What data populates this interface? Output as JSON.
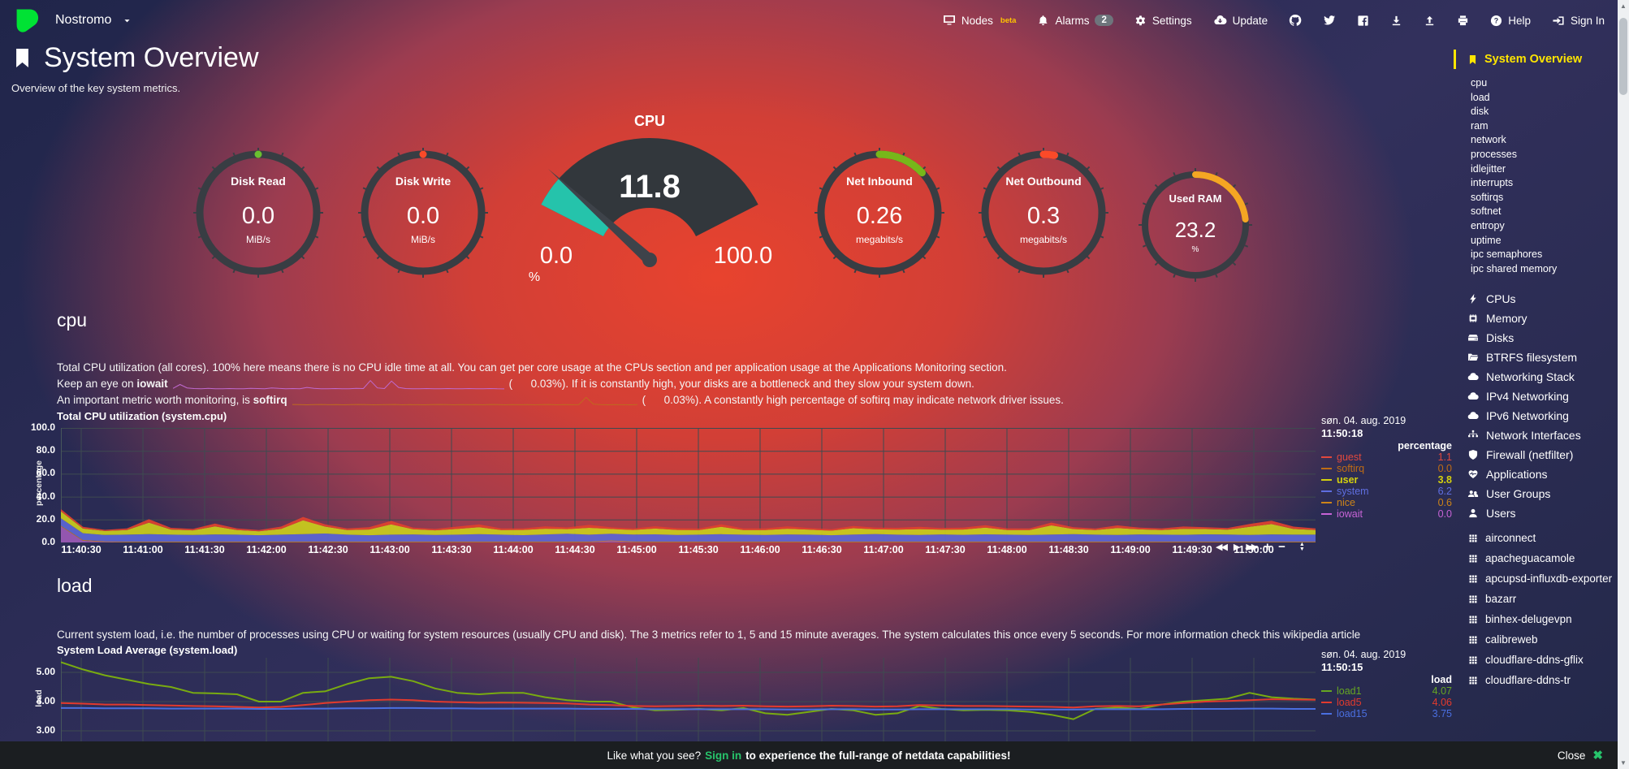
{
  "navbar": {
    "hostname": "Nostromo",
    "nodes": {
      "label": "Nodes",
      "beta": "beta"
    },
    "alarms": {
      "label": "Alarms",
      "badge": "2"
    },
    "settings": {
      "label": "Settings"
    },
    "update": {
      "label": "Update"
    },
    "help": "Help",
    "signin": "Sign In"
  },
  "header": {
    "title": "System Overview",
    "subtitle": "Overview of the key system metrics."
  },
  "gauges": [
    {
      "kind": "ring",
      "label": "Disk Read",
      "value": "0.0",
      "unit": "MiB/s",
      "fraction": 0,
      "color": "#6abf30"
    },
    {
      "kind": "ring",
      "label": "Disk Write",
      "value": "0.0",
      "unit": "MiB/s",
      "fraction": 0,
      "color": "#fb4a28"
    },
    {
      "kind": "gauge",
      "label": "CPU",
      "value": "11.8",
      "min": "0.0",
      "max": "100.0",
      "unit": "%",
      "fraction": 0.118,
      "color": "#25c3ab"
    },
    {
      "kind": "ring",
      "label": "Net Inbound",
      "value": "0.26",
      "unit": "megabits/s",
      "fraction": 0.13,
      "color": "#77b71a"
    },
    {
      "kind": "ring",
      "label": "Net Outbound",
      "value": "0.3",
      "unit": "megabits/s",
      "fraction": 0.03,
      "color": "#fb4a28"
    },
    {
      "kind": "ring",
      "label": "Used RAM",
      "value": "23.2",
      "unit": "%",
      "fraction": 0.232,
      "color": "#f5a623",
      "small": true
    }
  ],
  "cpu_section": {
    "heading": "cpu",
    "line1": "Total CPU utilization (all cores). 100% here means there is no CPU idle time at all. You can get per core usage at the CPUs section and per application usage at the Applications Monitoring section.",
    "line2_pre": "Keep an eye on ",
    "line2_bold": "iowait",
    "line2_post": "(      0.03%). If it is constantly high, your disks are a bottleneck and they slow your system down.",
    "line3_pre": "An important metric worth monitoring, is ",
    "line3_bold": "softirq",
    "line3_post": "(      0.03%). A constantly high percentage of softirq may indicate network driver issues.",
    "iowait_spark_color": "#c06ad0",
    "softirq_spark_color": "#bf6a1f",
    "iowait_spark": [
      0.1,
      0.5,
      0.15,
      0.08,
      0.06,
      0.1,
      0.07,
      0.06,
      0.08,
      0.06,
      0.07,
      0.1,
      0.08,
      0.06,
      0.15,
      0.1,
      0.07,
      0.08,
      0.06,
      0.2,
      0.1,
      0.07,
      0.06,
      0.08,
      0.07,
      0.06,
      0.1,
      0.08,
      0.9,
      0.15,
      0.08,
      0.85,
      0.2,
      0.08,
      0.07,
      0.06,
      0.08,
      0.07,
      0.06,
      0.08,
      0.06,
      0.07,
      0.08,
      0.06,
      0.07,
      0.08,
      0.06,
      0.05
    ],
    "softirq_spark": [
      0.12,
      0.1,
      0.08,
      0.1,
      0.12,
      0.09,
      0.1,
      0.08,
      0.1,
      0.12,
      0.1,
      0.08,
      0.09,
      0.1,
      0.12,
      0.08,
      0.1,
      0.09,
      0.08,
      0.1,
      0.12,
      0.1,
      0.08,
      0.1,
      0.09,
      0.1,
      0.08,
      0.12,
      0.1,
      0.08,
      0.1,
      0.09,
      0.1,
      0.08,
      0.1,
      0.12,
      0.08,
      0.1,
      0.09,
      0.1,
      0.85,
      0.15,
      0.1,
      0.08,
      0.1,
      0.09,
      0.08,
      0.1
    ]
  },
  "load_section": {
    "heading": "load",
    "description": "Current system load, i.e. the number of processes using CPU or waiting for system resources (usually CPU and disk). The 3 metrics refer to 1, 5 and 15 minute averages. The system calculates this once every 5 seconds. For more information check this wikipedia article"
  },
  "chart_data": [
    {
      "id": "cpu",
      "type": "area-stacked",
      "title": "Total CPU utilization (system.cpu)",
      "ylabel": "percentage",
      "ylim": [
        0,
        100
      ],
      "yticks": [
        "100.0",
        "80.0",
        "60.0",
        "40.0",
        "20.0",
        "0.0"
      ],
      "x_labels": [
        "11:40:30",
        "11:41:00",
        "11:41:30",
        "11:42:00",
        "11:42:30",
        "11:43:00",
        "11:43:30",
        "11:44:00",
        "11:44:30",
        "11:45:00",
        "11:45:30",
        "11:46:00",
        "11:46:30",
        "11:47:00",
        "11:47:30",
        "11:48:00",
        "11:48:30",
        "11:49:00",
        "11:49:30",
        "11:50:00"
      ],
      "legend": {
        "date": "søn. 04. aug. 2019",
        "time": "11:50:18",
        "header": "percentage",
        "items": [
          {
            "name": "guest",
            "value": "1.1",
            "color": "#e2483d"
          },
          {
            "name": "softirq",
            "value": "0.0",
            "color": "#c06c14"
          },
          {
            "name": "user",
            "value": "3.8",
            "color": "#d4d00e",
            "bold": true
          },
          {
            "name": "system",
            "value": "6.2",
            "color": "#5f6ee0"
          },
          {
            "name": "nice",
            "value": "0.6",
            "color": "#cd8419"
          },
          {
            "name": "iowait",
            "value": "0.0",
            "color": "#c763d6"
          }
        ]
      },
      "toolbar": [
        "rewind",
        "play",
        "fast-forward",
        "zoom-in",
        "zoom-out",
        "resize"
      ],
      "series": [
        {
          "name": "iowait",
          "color": "#9b59b6",
          "values": [
            14,
            1.5,
            0.4,
            0.2,
            0.2,
            0.2,
            0.2,
            0.2,
            0.2,
            0.2,
            0.2,
            0.2,
            0.2,
            0.2,
            0.2,
            0.2,
            0.2,
            0.2,
            0.2,
            0.2,
            0.2,
            0.2,
            0.2,
            0.2,
            0.2,
            1.2,
            0.3,
            0.2,
            0.2,
            0.2,
            0.2,
            0.2,
            0.2,
            0.2,
            0.2,
            0.2,
            0.2,
            0.2,
            0.2,
            0.2,
            0.2,
            0.2,
            0.2,
            0.2,
            0.2,
            0.2,
            0.2,
            0.2,
            0.2,
            0.2,
            0.2,
            0.2,
            0.2,
            0.2,
            0.2,
            0.2,
            0.2,
            0.2
          ]
        },
        {
          "name": "nice",
          "color": "#cd8419",
          "constant": 0.6
        },
        {
          "name": "system",
          "color": "#5b66d4",
          "values": [
            6.5,
            6,
            5.5,
            6,
            6.5,
            6,
            5.8,
            6.2,
            6,
            5.5,
            6,
            6.5,
            7,
            6,
            5.5,
            6,
            6.2,
            5.8,
            6,
            6.5,
            6,
            5.6,
            6.2,
            6.8,
            6,
            5.8,
            6,
            6.3,
            5.7,
            6,
            6.4,
            6,
            5.8,
            6.2,
            6,
            5.5,
            6.1,
            6.6,
            6,
            5.8,
            6.2,
            5.9,
            6.3,
            6,
            5.7,
            6.1,
            6.4,
            6,
            5.8,
            6.2,
            6,
            5.9,
            6.3,
            6.1,
            5.8,
            6.2,
            6,
            6
          ]
        },
        {
          "name": "user",
          "color": "#c9cc1c",
          "values": [
            6,
            4,
            3.5,
            4,
            10,
            4.5,
            4,
            7,
            4,
            3.5,
            5,
            12,
            6,
            4,
            5,
            9,
            4.5,
            4,
            5,
            6,
            4,
            4.5,
            5,
            4,
            6,
            4.2,
            4,
            5,
            4.4,
            4,
            6.5,
            4,
            4.2,
            5,
            4.3,
            4,
            5.5,
            4,
            4.4,
            5,
            4.2,
            4.6,
            5.8,
            4,
            4.3,
            8,
            4.5,
            4,
            6,
            4.4,
            4,
            5.2,
            4.6,
            4.2,
            7,
            9,
            5,
            4
          ]
        },
        {
          "name": "guest",
          "color": "#e0422e",
          "values": [
            2,
            1.5,
            1,
            1.5,
            3,
            1.5,
            1.2,
            2.5,
            1.5,
            1,
            2,
            3,
            2,
            1.5,
            2,
            3,
            1.5,
            1.2,
            2,
            2.5,
            1.5,
            1.3,
            2,
            1.5,
            2.5,
            1.4,
            1.2,
            2,
            1.5,
            1.3,
            2.2,
            1.5,
            1.4,
            2,
            1.5,
            1.2,
            2,
            1.5,
            1.6,
            2,
            1.4,
            1.6,
            2.2,
            1.5,
            1.4,
            2.5,
            1.6,
            1.3,
            2.3,
            1.5,
            1.4,
            2,
            1.6,
            1.5,
            2.5,
            3,
            2,
            1.5
          ]
        }
      ]
    },
    {
      "id": "load",
      "type": "line",
      "title": "System Load Average (system.load)",
      "ylabel": "load",
      "ylim": [
        2.64,
        5.5
      ],
      "yticks": [
        "5.00",
        "4.00",
        "3.00"
      ],
      "legend": {
        "date": "søn. 04. aug. 2019",
        "time": "11:50:15",
        "header": "load",
        "items": [
          {
            "name": "load1",
            "value": "4.07",
            "color": "#66a622"
          },
          {
            "name": "load5",
            "value": "4.06",
            "color": "#e23a2d"
          },
          {
            "name": "load15",
            "value": "3.75",
            "color": "#4a6fe0"
          }
        ]
      },
      "series": [
        {
          "name": "load1",
          "color": "#79ab11",
          "values": [
            5.35,
            5.1,
            4.9,
            4.75,
            4.6,
            4.5,
            4.3,
            4.28,
            4.25,
            4.0,
            4.0,
            4.3,
            4.35,
            4.6,
            4.8,
            4.85,
            4.7,
            4.45,
            4.3,
            4.25,
            4.3,
            4.3,
            4.15,
            4.05,
            4.0,
            4.0,
            3.8,
            3.7,
            3.72,
            3.75,
            3.7,
            3.78,
            3.6,
            3.55,
            3.65,
            3.75,
            3.7,
            3.55,
            3.6,
            3.85,
            3.75,
            3.7,
            3.72,
            3.7,
            3.65,
            3.55,
            3.4,
            3.75,
            3.8,
            3.75,
            3.9,
            4.0,
            4.05,
            4.1,
            4.3,
            4.15,
            4.1,
            4.07
          ]
        },
        {
          "name": "load5",
          "color": "#e23a2d",
          "values": [
            3.95,
            3.93,
            3.9,
            3.9,
            3.88,
            3.87,
            3.85,
            3.84,
            3.82,
            3.8,
            3.82,
            3.88,
            3.95,
            4.0,
            4.05,
            4.07,
            4.05,
            4.0,
            3.98,
            3.96,
            3.97,
            3.96,
            3.95,
            3.94,
            3.9,
            3.88,
            3.85,
            3.84,
            3.85,
            3.86,
            3.85,
            3.86,
            3.84,
            3.83,
            3.84,
            3.86,
            3.85,
            3.83,
            3.84,
            3.88,
            3.87,
            3.85,
            3.85,
            3.84,
            3.83,
            3.82,
            3.8,
            3.84,
            3.85,
            3.84,
            3.9,
            3.95,
            4.0,
            4.02,
            4.05,
            4.08,
            4.07,
            4.06
          ]
        },
        {
          "name": "load15",
          "color": "#4a6fe0",
          "values": [
            3.78,
            3.78,
            3.77,
            3.77,
            3.77,
            3.76,
            3.76,
            3.76,
            3.76,
            3.75,
            3.75,
            3.76,
            3.76,
            3.77,
            3.77,
            3.78,
            3.78,
            3.77,
            3.77,
            3.76,
            3.76,
            3.76,
            3.76,
            3.76,
            3.75,
            3.75,
            3.75,
            3.74,
            3.74,
            3.74,
            3.74,
            3.74,
            3.74,
            3.73,
            3.73,
            3.74,
            3.74,
            3.73,
            3.73,
            3.74,
            3.74,
            3.74,
            3.74,
            3.74,
            3.73,
            3.73,
            3.73,
            3.74,
            3.74,
            3.74,
            3.74,
            3.75,
            3.75,
            3.75,
            3.76,
            3.76,
            3.75,
            3.75
          ]
        }
      ]
    }
  ],
  "sidebar": {
    "active": {
      "label": "System Overview"
    },
    "subitems": [
      "cpu",
      "load",
      "disk",
      "ram",
      "network",
      "processes",
      "idlejitter",
      "interrupts",
      "softirqs",
      "softnet",
      "entropy",
      "uptime",
      "ipc semaphores",
      "ipc shared memory"
    ],
    "sections": [
      {
        "icon": "bolt",
        "label": "CPUs"
      },
      {
        "icon": "chip",
        "label": "Memory"
      },
      {
        "icon": "hdd",
        "label": "Disks"
      },
      {
        "icon": "folder",
        "label": "BTRFS filesystem"
      },
      {
        "icon": "cloud",
        "label": "Networking Stack"
      },
      {
        "icon": "cloud",
        "label": "IPv4 Networking"
      },
      {
        "icon": "cloud",
        "label": "IPv6 Networking"
      },
      {
        "icon": "sitemap",
        "label": "Network Interfaces"
      },
      {
        "icon": "shield",
        "label": "Firewall (netfilter)"
      },
      {
        "icon": "heartbeat",
        "label": "Applications"
      },
      {
        "icon": "users",
        "label": "User Groups"
      },
      {
        "icon": "user",
        "label": "Users"
      }
    ],
    "containers": [
      "airconnect",
      "apacheguacamole",
      "apcupsd-influxdb-exporter",
      "bazarr",
      "binhex-delugevpn",
      "calibreweb",
      "cloudflare-ddns-gflix",
      "cloudflare-ddns-tr"
    ]
  },
  "bottom_bar": {
    "pre": "Like what you see?",
    "signin": "Sign in",
    "post": "to experience the full-range of netdata capabilities!",
    "close": "Close"
  }
}
